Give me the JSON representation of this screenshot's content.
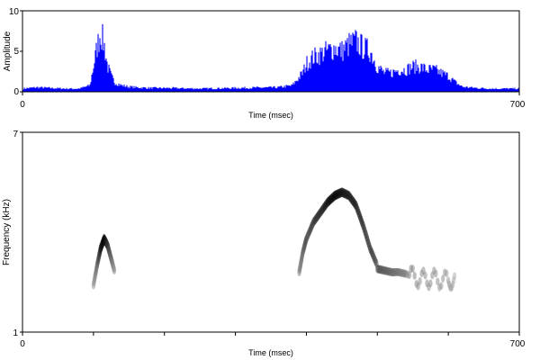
{
  "chart_data": [
    {
      "type": "area",
      "title": "",
      "xlabel": "Time (msec)",
      "ylabel": "Amplitude",
      "xlim": [
        0,
        700
      ],
      "ylim": [
        0,
        10
      ],
      "x_tick_labels": [
        "0",
        "700"
      ],
      "y_tick_labels": [
        "0",
        "5",
        "10"
      ],
      "color": "#0000ff",
      "series": [
        {
          "x": [
            0,
            20,
            40,
            60,
            80,
            95,
            100,
            105,
            110,
            115,
            120,
            125,
            130,
            140,
            150,
            160,
            180,
            200,
            250,
            300,
            360,
            380,
            395,
            400,
            405,
            410,
            420,
            430,
            440,
            450,
            460,
            470,
            480,
            490,
            500,
            510,
            520,
            530,
            540,
            550,
            560,
            570,
            580,
            590,
            600,
            610,
            620,
            640,
            660,
            680,
            700
          ],
          "values": [
            0.5,
            0.7,
            0.6,
            0.5,
            0.5,
            1.0,
            4.0,
            7.0,
            9.5,
            7.5,
            4.0,
            2.5,
            1.5,
            1.0,
            0.8,
            0.7,
            0.6,
            0.6,
            0.5,
            0.6,
            0.7,
            1.0,
            3.0,
            4.5,
            5.0,
            5.5,
            6.0,
            6.5,
            7.0,
            6.5,
            7.5,
            8.0,
            7.0,
            6.5,
            4.0,
            3.0,
            3.0,
            3.5,
            3.5,
            4.0,
            4.0,
            3.5,
            3.5,
            3.0,
            2.5,
            1.5,
            0.8,
            0.6,
            0.5,
            0.5,
            0.5
          ]
        }
      ]
    },
    {
      "type": "heatmap",
      "title": "",
      "xlabel": "Time (msec)",
      "ylabel": "Frequency (kHz)",
      "xlim": [
        0,
        700
      ],
      "ylim": [
        1,
        7
      ],
      "x_tick_labels": [
        "0",
        "700"
      ],
      "y_tick_labels": [
        "1",
        "7"
      ],
      "colormap": "grayscale",
      "traces": [
        {
          "description": "first note",
          "x": [
            100,
            105,
            110,
            115,
            120,
            125,
            130
          ],
          "y": [
            2.4,
            3.0,
            3.5,
            3.8,
            3.6,
            3.2,
            2.8
          ],
          "darkness": [
            0.4,
            0.6,
            0.9,
            1.0,
            0.8,
            0.6,
            0.4
          ]
        },
        {
          "description": "second note arch",
          "x": [
            390,
            395,
            400,
            410,
            420,
            430,
            440,
            450,
            460,
            470,
            480,
            490,
            500
          ],
          "y": [
            2.8,
            3.4,
            3.8,
            4.3,
            4.6,
            4.9,
            5.1,
            5.2,
            5.1,
            4.8,
            4.2,
            3.5,
            3.0
          ],
          "darkness": [
            0.5,
            0.6,
            0.7,
            0.8,
            0.85,
            0.95,
            1.0,
            0.95,
            0.9,
            0.9,
            0.85,
            0.8,
            0.7
          ]
        },
        {
          "description": "second note tail",
          "x": [
            500,
            510,
            520,
            530,
            540,
            560,
            580,
            600,
            610
          ],
          "y": [
            2.9,
            2.85,
            2.8,
            2.8,
            2.75,
            2.6,
            2.6,
            2.55,
            2.6
          ],
          "darkness": [
            0.7,
            0.65,
            0.6,
            0.55,
            0.5,
            0.45,
            0.45,
            0.4,
            0.3
          ]
        }
      ]
    }
  ]
}
